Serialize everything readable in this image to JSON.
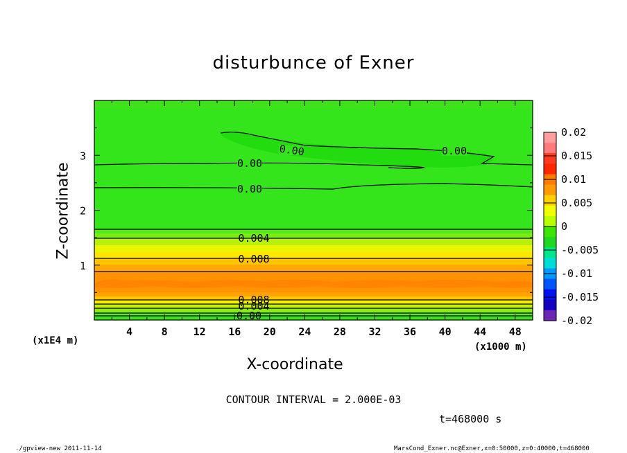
{
  "chart_data": {
    "type": "contour",
    "title": "disturbunce of Exner",
    "xlabel": "X-coordinate",
    "ylabel": "Z-coordinate",
    "x_unit": "(x1000 m)",
    "y_unit": "(x1E4 m)",
    "x_ticks": [
      4,
      8,
      12,
      16,
      20,
      24,
      28,
      32,
      36,
      40,
      44,
      48
    ],
    "y_ticks": [
      1,
      2,
      3
    ],
    "xlim": [
      0,
      50
    ],
    "ylim": [
      0,
      4
    ],
    "contour_interval_text": "CONTOUR INTERVAL = 2.000E-03",
    "time_text": "t=468000 s",
    "contour_labels": [
      "0.00",
      "0.00",
      "0.00",
      "0.00",
      "0.004",
      "0.008",
      "0.008",
      "0.004",
      "0.00"
    ],
    "colorbar": {
      "ticks": [
        "0.02",
        "0.015",
        "0.01",
        "0.005",
        "0",
        "-0.005",
        "-0.01",
        "-0.015",
        "-0.02"
      ],
      "colors": [
        "#ff9ea0",
        "#ff7a7a",
        "#ff3b1f",
        "#ff2800",
        "#ff7a00",
        "#ff9a00",
        "#ffd000",
        "#f0ff00",
        "#b8ff00",
        "#3ce600",
        "#1fd81f",
        "#00e68c",
        "#00ddd8",
        "#0099ff",
        "#0055ff",
        "#0011ee",
        "#1500c0",
        "#6a28b4"
      ]
    }
  },
  "footer": {
    "left": "./gpview-new   2011-11-14",
    "right": "MarsCond_Exner.nc@Exner,x=0:50000,z=0:40000,t=468000"
  }
}
